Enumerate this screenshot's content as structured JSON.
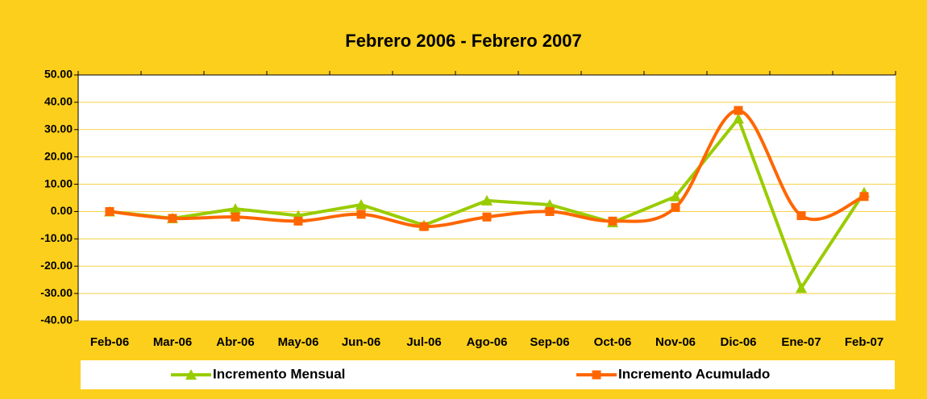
{
  "chart_data": {
    "type": "line",
    "title": "Febrero 2006 - Febrero 2007",
    "categories": [
      "Feb-06",
      "Mar-06",
      "Abr-06",
      "May-06",
      "Jun-06",
      "Jul-06",
      "Ago-06",
      "Sep-06",
      "Oct-06",
      "Nov-06",
      "Dic-06",
      "Ene-07",
      "Feb-07"
    ],
    "series": [
      {
        "name": "Incremento Mensual",
        "color": "#99cc00",
        "marker": "triangle",
        "smooth": false,
        "values": [
          0,
          -2.5,
          1,
          -1.5,
          2.5,
          -5,
          4,
          2.5,
          -4,
          5.5,
          34,
          -28,
          7
        ]
      },
      {
        "name": "Incremento Acumulado",
        "color": "#ff6600",
        "marker": "square",
        "smooth": true,
        "values": [
          0,
          -2.5,
          -2,
          -3.5,
          -1,
          -5.5,
          -2,
          0,
          -3.5,
          1.5,
          37,
          -1.5,
          5.5
        ]
      }
    ],
    "ylim": [
      -40,
      50
    ],
    "yticks": [
      {
        "value": -40,
        "label": "-40.00"
      },
      {
        "value": -30,
        "label": "-30.00"
      },
      {
        "value": -20,
        "label": "-20.00"
      },
      {
        "value": -10,
        "label": "-10.00"
      },
      {
        "value": 0,
        "label": "0.00"
      },
      {
        "value": 10,
        "label": "10.00"
      },
      {
        "value": 20,
        "label": "20.00"
      },
      {
        "value": 30,
        "label": "30.00"
      },
      {
        "value": 40,
        "label": "40.00"
      },
      {
        "value": 50,
        "label": "50.00"
      }
    ],
    "grid": true,
    "legend": "bottom"
  }
}
